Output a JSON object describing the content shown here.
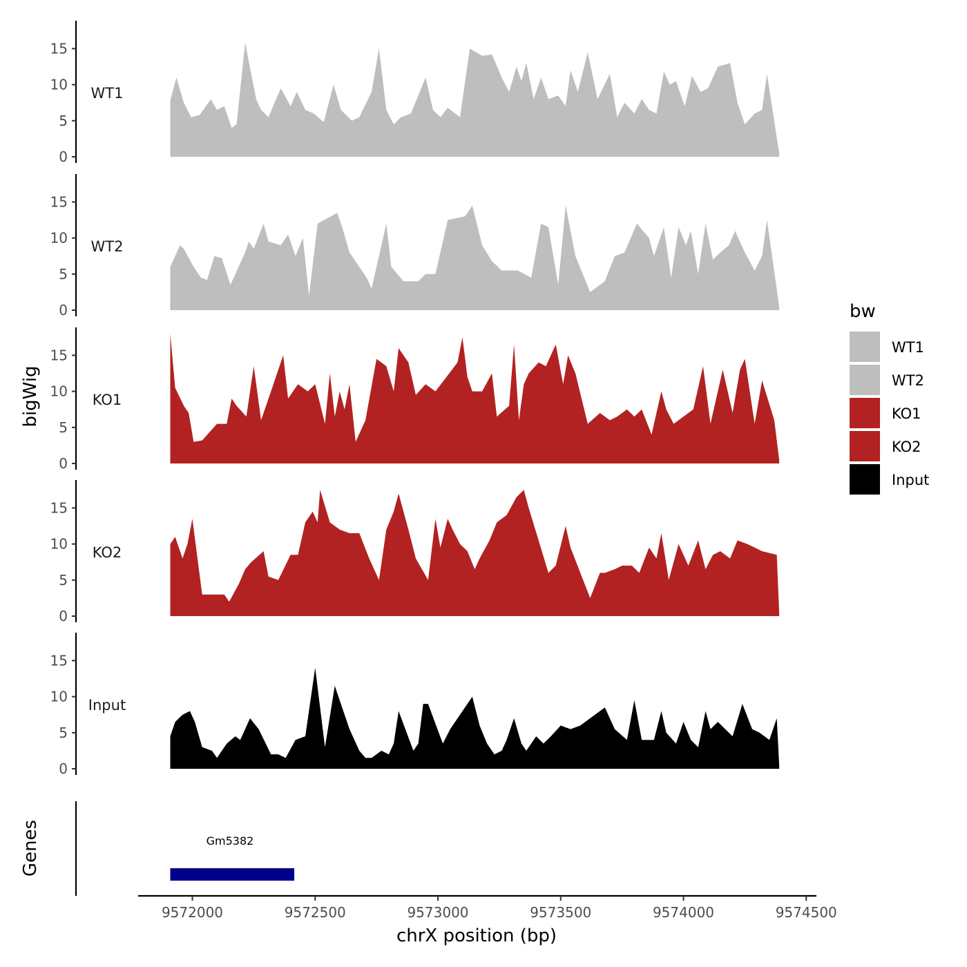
{
  "chart_data": {
    "type": "area",
    "title": "",
    "xlabel": "chrX position (bp)",
    "ylabel": "bigWig",
    "genes_label": "Genes",
    "xlim": [
      9571800,
      9574550
    ],
    "x_ticks": [
      9572000,
      9572500,
      9573000,
      9573500,
      9574000,
      9574500
    ],
    "x_tick_labels": [
      "9572000",
      "9572500",
      "9573000",
      "9573500",
      "9574000",
      "9574500"
    ],
    "ylim": [
      0,
      18.5
    ],
    "y_ticks": [
      0,
      5,
      10,
      15
    ],
    "y_tick_labels": [
      "0",
      "5",
      "10",
      "15"
    ],
    "legend": {
      "title": "bw",
      "position": "right",
      "entries": [
        {
          "label": "WT1",
          "color": "#bebebe"
        },
        {
          "label": "WT2",
          "color": "#bebebe"
        },
        {
          "label": "KO1",
          "color": "#b22222"
        },
        {
          "label": "KO2",
          "color": "#b22222"
        },
        {
          "label": "Input",
          "color": "#000000"
        }
      ]
    },
    "series": [
      {
        "name": "WT1",
        "color": "#bebebe",
        "x": [
          9571910,
          9571935,
          9571965,
          9571995,
          9572030,
          9572075,
          9572100,
          9572130,
          9572160,
          9572180,
          9572215,
          9572260,
          9572280,
          9572310,
          9572360,
          9572400,
          9572425,
          9572460,
          9572495,
          9572535,
          9572575,
          9572605,
          9572650,
          9572680,
          9572730,
          9572760,
          9572790,
          9572820,
          9572850,
          9572890,
          9572950,
          9572980,
          9573010,
          9573040,
          9573090,
          9573130,
          9573180,
          9573220,
          9573260,
          9573290,
          9573320,
          9573340,
          9573360,
          9573390,
          9573420,
          9573450,
          9573490,
          9573520,
          9573540,
          9573570,
          9573610,
          9573650,
          9573700,
          9573730,
          9573760,
          9573800,
          9573830,
          9573860,
          9573890,
          9573920,
          9573945,
          9573970,
          9574005,
          9574035,
          9574070,
          9574100,
          9574140,
          9574190,
          9574220,
          9574250,
          9574290,
          9574320,
          9574340,
          9574390
        ],
        "values": [
          7.8,
          11.0,
          7.5,
          5.5,
          5.8,
          8.0,
          6.5,
          7.0,
          4.0,
          4.5,
          15.8,
          8.0,
          6.5,
          5.5,
          9.5,
          7.0,
          9.0,
          6.5,
          6.0,
          4.8,
          10.0,
          6.5,
          5.0,
          5.5,
          9.0,
          15.0,
          6.5,
          4.5,
          5.5,
          6.0,
          11.0,
          6.5,
          5.5,
          6.8,
          5.5,
          15.0,
          14.0,
          14.2,
          11.0,
          9.0,
          12.5,
          10.5,
          13.0,
          8.0,
          11.0,
          8.0,
          8.5,
          7.0,
          12.0,
          9.0,
          14.5,
          8.0,
          11.5,
          5.5,
          7.5,
          6.0,
          8.0,
          6.5,
          6.0,
          11.8,
          10.0,
          10.5,
          7.0,
          11.2,
          9.0,
          9.5,
          12.5,
          13.0,
          7.5,
          4.5,
          6.0,
          6.5,
          11.5,
          0.5
        ]
      },
      {
        "name": "WT2",
        "color": "#bebebe",
        "x": [
          9571910,
          9571950,
          9571965,
          9572005,
          9572035,
          9572060,
          9572090,
          9572120,
          9572155,
          9572215,
          9572230,
          9572250,
          9572290,
          9572310,
          9572360,
          9572390,
          9572420,
          9572450,
          9572475,
          9572510,
          9572590,
          9572610,
          9572640,
          9572690,
          9572710,
          9572730,
          9572790,
          9572810,
          9572860,
          9572920,
          9572950,
          9572990,
          9573040,
          9573110,
          9573140,
          9573180,
          9573220,
          9573260,
          9573290,
          9573325,
          9573380,
          9573420,
          9573450,
          9573490,
          9573520,
          9573560,
          9573620,
          9573680,
          9573720,
          9573760,
          9573810,
          9573860,
          9573880,
          9573920,
          9573950,
          9573980,
          9574010,
          9574030,
          9574060,
          9574090,
          9574120,
          9574150,
          9574185,
          9574210,
          9574250,
          9574290,
          9574320,
          9574340,
          9574390
        ],
        "values": [
          6.0,
          9.0,
          8.5,
          6.0,
          4.5,
          4.2,
          7.5,
          7.2,
          3.5,
          8.0,
          9.5,
          8.5,
          12.0,
          9.5,
          9.0,
          10.5,
          7.5,
          10.0,
          2.0,
          12.0,
          13.5,
          11.5,
          8.0,
          5.5,
          4.5,
          3.0,
          12.0,
          6.0,
          4.0,
          4.0,
          5.0,
          5.0,
          12.5,
          13.0,
          14.5,
          9.0,
          6.8,
          5.5,
          5.5,
          5.5,
          4.5,
          12.0,
          11.5,
          3.5,
          14.5,
          7.5,
          2.5,
          4.0,
          7.5,
          8.0,
          12.0,
          10.0,
          7.5,
          11.5,
          4.5,
          11.5,
          9.0,
          11.0,
          5.0,
          12.0,
          7.0,
          8.0,
          9.0,
          11.0,
          8.0,
          5.5,
          7.5,
          12.5,
          0.5
        ]
      },
      {
        "name": "KO1",
        "color": "#b22222",
        "x": [
          9571910,
          9571930,
          9571965,
          9571985,
          9572005,
          9572040,
          9572100,
          9572140,
          9572160,
          9572180,
          9572220,
          9572250,
          9572280,
          9572320,
          9572370,
          9572390,
          9572430,
          9572470,
          9572500,
          9572540,
          9572560,
          9572580,
          9572600,
          9572620,
          9572640,
          9572665,
          9572705,
          9572750,
          9572790,
          9572820,
          9572840,
          9572880,
          9572910,
          9572950,
          9572990,
          9573035,
          9573080,
          9573100,
          9573120,
          9573140,
          9573180,
          9573220,
          9573240,
          9573290,
          9573310,
          9573330,
          9573350,
          9573370,
          9573410,
          9573440,
          9573480,
          9573510,
          9573530,
          9573560,
          9573610,
          9573660,
          9573700,
          9573730,
          9573770,
          9573800,
          9573830,
          9573870,
          9573910,
          9573930,
          9573960,
          9574000,
          9574040,
          9574080,
          9574110,
          9574160,
          9574200,
          9574230,
          9574250,
          9574290,
          9574320,
          9574370,
          9574390
        ],
        "values": [
          18.0,
          10.5,
          8.0,
          7.0,
          3.0,
          3.2,
          5.5,
          5.5,
          9.0,
          8.0,
          6.5,
          13.5,
          6.0,
          10.0,
          15.0,
          9.0,
          11.0,
          10.0,
          11.0,
          5.5,
          12.5,
          6.5,
          10.0,
          7.5,
          11.0,
          3.0,
          6.0,
          14.5,
          13.5,
          10.0,
          16.0,
          14.0,
          9.5,
          11.0,
          10.0,
          12.0,
          14.0,
          17.5,
          12.0,
          10.0,
          10.0,
          12.5,
          6.5,
          8.0,
          16.5,
          6.0,
          11.0,
          12.5,
          14.0,
          13.5,
          16.5,
          11.0,
          15.0,
          12.5,
          5.5,
          7.0,
          6.0,
          6.5,
          7.5,
          6.5,
          7.5,
          4.0,
          10.0,
          7.5,
          5.5,
          6.5,
          7.5,
          13.5,
          5.5,
          13.0,
          7.0,
          13.0,
          14.5,
          5.5,
          11.5,
          6.0,
          0.5
        ]
      },
      {
        "name": "KO2",
        "color": "#b22222",
        "x": [
          9571910,
          9571930,
          9571960,
          9571980,
          9572000,
          9572040,
          9572060,
          9572090,
          9572130,
          9572150,
          9572190,
          9572215,
          9572240,
          9572290,
          9572310,
          9572350,
          9572400,
          9572430,
          9572460,
          9572490,
          9572510,
          9572520,
          9572560,
          9572600,
          9572640,
          9572680,
          9572720,
          9572760,
          9572790,
          9572820,
          9572840,
          9572880,
          9572910,
          9572960,
          9572990,
          9573010,
          9573040,
          9573060,
          9573090,
          9573120,
          9573150,
          9573170,
          9573210,
          9573240,
          9573280,
          9573320,
          9573350,
          9573370,
          9573410,
          9573450,
          9573480,
          9573520,
          9573540,
          9573580,
          9573620,
          9573660,
          9573680,
          9573720,
          9573750,
          9573790,
          9573820,
          9573860,
          9573890,
          9573910,
          9573940,
          9573980,
          9574020,
          9574060,
          9574090,
          9574120,
          9574150,
          9574190,
          9574220,
          9574260,
          9574290,
          9574320,
          9574380,
          9574390
        ],
        "values": [
          10.0,
          11.0,
          8.0,
          10.0,
          13.5,
          3.0,
          3.0,
          3.0,
          3.0,
          2.0,
          4.5,
          6.5,
          7.5,
          9.0,
          5.5,
          5.0,
          8.5,
          8.5,
          13.0,
          14.5,
          13.0,
          17.5,
          13.0,
          12.0,
          11.5,
          11.5,
          8.0,
          5.0,
          12.0,
          14.5,
          17.0,
          12.0,
          8.0,
          5.0,
          13.5,
          9.5,
          13.5,
          12.0,
          10.0,
          9.0,
          6.5,
          8.0,
          10.5,
          13.0,
          14.0,
          16.5,
          17.5,
          15.0,
          10.5,
          6.0,
          7.0,
          12.5,
          9.5,
          6.0,
          2.5,
          6.0,
          6.0,
          6.5,
          7.0,
          7.0,
          6.0,
          9.5,
          8.0,
          11.5,
          5.0,
          10.0,
          7.0,
          10.5,
          6.5,
          8.5,
          9.0,
          8.0,
          10.5,
          10.0,
          9.5,
          9.0,
          8.5,
          0.5
        ]
      },
      {
        "name": "Input",
        "color": "#000000",
        "x": [
          9571910,
          9571930,
          9571960,
          9571990,
          9572010,
          9572040,
          9572080,
          9572100,
          9572140,
          9572175,
          9572195,
          9572235,
          9572270,
          9572320,
          9572350,
          9572380,
          9572420,
          9572460,
          9572500,
          9572540,
          9572580,
          9572590,
          9572640,
          9572680,
          9572705,
          9572730,
          9572770,
          9572800,
          9572820,
          9572840,
          9572900,
          9572920,
          9572940,
          9572960,
          9573020,
          9573050,
          9573090,
          9573140,
          9573170,
          9573200,
          9573230,
          9573260,
          9573280,
          9573310,
          9573340,
          9573360,
          9573400,
          9573430,
          9573460,
          9573500,
          9573540,
          9573580,
          9573620,
          9573680,
          9573720,
          9573770,
          9573800,
          9573830,
          9573880,
          9573910,
          9573930,
          9573970,
          9574000,
          9574030,
          9574060,
          9574090,
          9574110,
          9574140,
          9574200,
          9574240,
          9574280,
          9574310,
          9574350,
          9574380,
          9574390
        ],
        "values": [
          4.5,
          6.5,
          7.5,
          8.0,
          6.5,
          3.0,
          2.5,
          1.5,
          3.5,
          4.5,
          4.0,
          7.0,
          5.5,
          2.0,
          2.0,
          1.5,
          4.0,
          4.5,
          14.0,
          3.0,
          11.5,
          10.5,
          5.5,
          2.5,
          1.5,
          1.5,
          2.5,
          2.0,
          3.5,
          8.0,
          2.5,
          3.5,
          9.0,
          9.0,
          3.5,
          5.5,
          7.5,
          10.0,
          6.0,
          3.5,
          2.0,
          2.5,
          4.0,
          7.0,
          3.5,
          2.5,
          4.5,
          3.5,
          4.5,
          6.0,
          5.5,
          6.0,
          7.0,
          8.5,
          5.5,
          4.0,
          9.5,
          4.0,
          4.0,
          8.0,
          5.0,
          3.5,
          6.5,
          4.0,
          3.0,
          8.0,
          5.5,
          6.5,
          4.5,
          9.0,
          5.5,
          5.0,
          4.0,
          7.0,
          0.5
        ]
      }
    ],
    "genes": [
      {
        "name": "Gm5382",
        "start": 9571910,
        "end": 9572415,
        "strand": "+",
        "color": "#00008b"
      }
    ]
  }
}
